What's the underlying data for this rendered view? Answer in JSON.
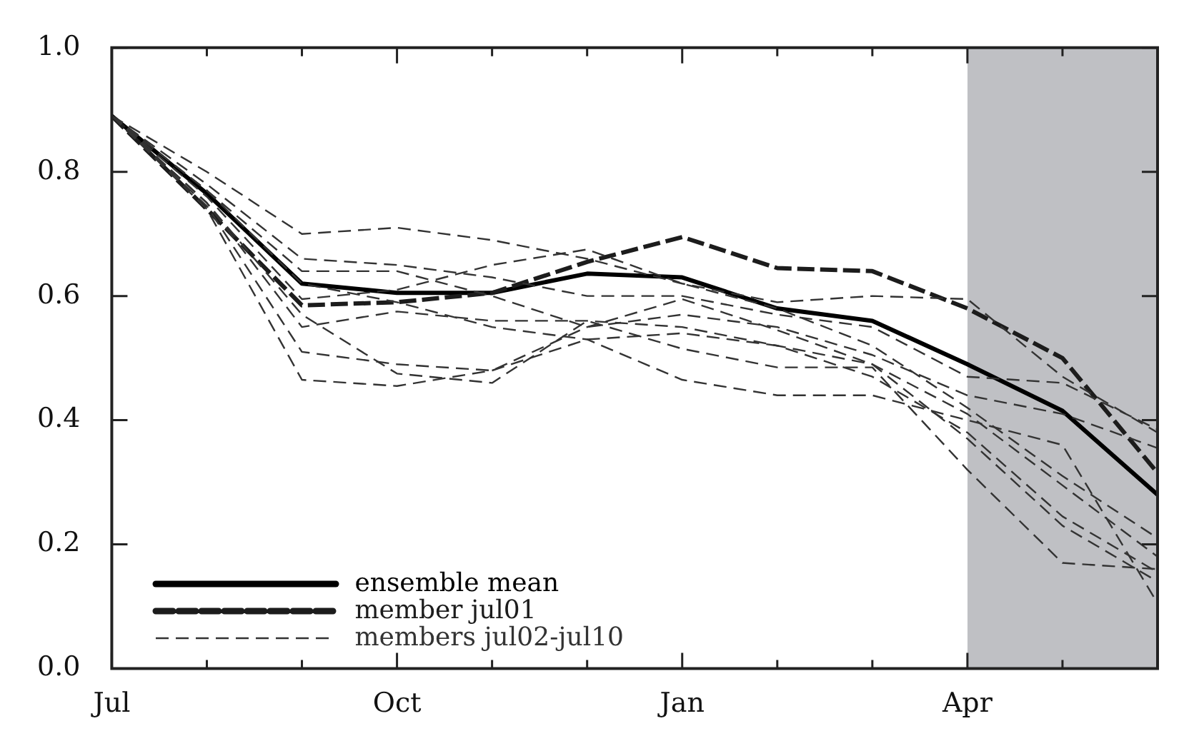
{
  "chart_data": {
    "type": "line",
    "categories": [
      "Jul",
      null,
      null,
      "Oct",
      null,
      null,
      "Jan",
      null,
      null,
      "Apr",
      null,
      null
    ],
    "ylim": [
      0,
      1
    ],
    "yticks": [
      {
        "value": 0,
        "label": "0.0"
      },
      {
        "value": 0.2,
        "label": "0.2"
      },
      {
        "value": 0.4,
        "label": "0.4"
      },
      {
        "value": 0.6,
        "label": "0.6"
      },
      {
        "value": 0.8,
        "label": "0.8"
      },
      {
        "value": 1,
        "label": "1.0"
      }
    ],
    "grid": false,
    "legend": "bottom left",
    "marker": "none",
    "series": [
      {
        "name": "ensemble mean",
        "color": "#000000",
        "line_style": "solid",
        "values": [
          0.89,
          0.765,
          0.62,
          0.605,
          0.605,
          0.636,
          0.63,
          0.58,
          0.56,
          0.49,
          0.415,
          0.28
        ]
      },
      {
        "name": "member jul01",
        "color": "#1c1c1c",
        "line_style": "dashed",
        "values": [
          0.89,
          0.74,
          0.585,
          0.59,
          0.605,
          0.655,
          0.695,
          0.645,
          0.64,
          0.58,
          0.5,
          0.315
        ]
      },
      {
        "name": "members jul02-jul10",
        "color": "#333333",
        "line_style": "dashed",
        "values": [
          0.89,
          0.8,
          0.7,
          0.71,
          0.69,
          0.66,
          0.62,
          0.59,
          0.6,
          0.595,
          0.47,
          0.38
        ]
      },
      {
        "color": "#333333",
        "line_style": "dashed",
        "values": [
          0.89,
          0.78,
          0.66,
          0.65,
          0.63,
          0.6,
          0.6,
          0.57,
          0.55,
          0.47,
          0.46,
          0.385
        ]
      },
      {
        "color": "#333333",
        "line_style": "dashed",
        "values": [
          0.89,
          0.77,
          0.64,
          0.64,
          0.6,
          0.55,
          0.57,
          0.55,
          0.505,
          0.44,
          0.41,
          0.355
        ]
      },
      {
        "color": "#333333",
        "line_style": "dashed",
        "values": [
          0.89,
          0.76,
          0.595,
          0.61,
          0.65,
          0.675,
          0.62,
          0.58,
          0.52,
          0.42,
          0.31,
          0.21
        ]
      },
      {
        "color": "#333333",
        "line_style": "dashed",
        "values": [
          0.89,
          0.75,
          0.55,
          0.575,
          0.56,
          0.56,
          0.55,
          0.52,
          0.49,
          0.41,
          0.295,
          0.18
        ]
      },
      {
        "color": "#333333",
        "line_style": "dashed",
        "values": [
          0.89,
          0.74,
          0.465,
          0.455,
          0.48,
          0.53,
          0.54,
          0.52,
          0.47,
          0.38,
          0.245,
          0.155
        ]
      },
      {
        "color": "#333333",
        "line_style": "dashed",
        "values": [
          0.89,
          0.745,
          0.51,
          0.49,
          0.48,
          0.55,
          0.595,
          0.545,
          0.49,
          0.37,
          0.23,
          0.14
        ]
      },
      {
        "color": "#333333",
        "line_style": "dashed",
        "values": [
          0.89,
          0.75,
          0.57,
          0.475,
          0.46,
          0.56,
          0.515,
          0.485,
          0.485,
          0.32,
          0.17,
          0.16
        ]
      },
      {
        "color": "#333333",
        "line_style": "dashed",
        "values": [
          0.89,
          0.77,
          0.62,
          0.59,
          0.55,
          0.53,
          0.465,
          0.44,
          0.44,
          0.4,
          0.36,
          0.105
        ]
      }
    ]
  }
}
